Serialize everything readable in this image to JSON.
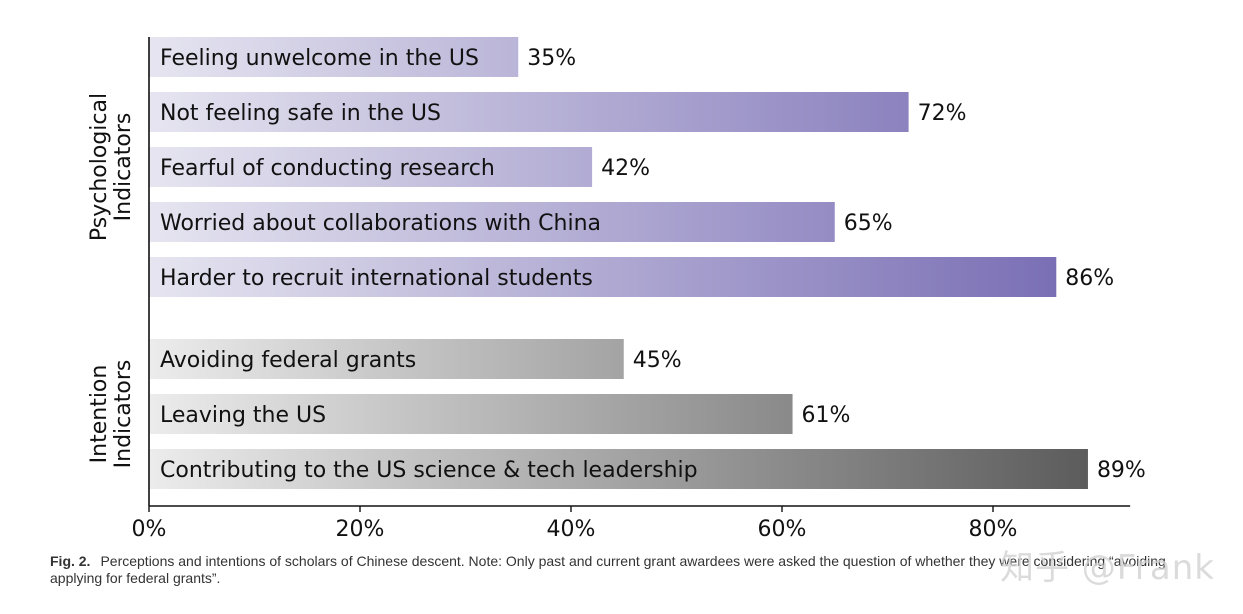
{
  "chart_data": {
    "type": "bar",
    "orientation": "horizontal",
    "groups": [
      {
        "name": "Psychological Indicators",
        "name_lines": [
          "Psychological",
          "Indicators"
        ],
        "color_start": "#e6e5f0",
        "color_end": "#7a6fb5",
        "bars": [
          {
            "label": "Feeling unwelcome in the US",
            "value": 35,
            "value_label": "35%"
          },
          {
            "label": "Not feeling safe in the US",
            "value": 72,
            "value_label": "72%"
          },
          {
            "label": "Fearful of conducting research",
            "value": 42,
            "value_label": "42%"
          },
          {
            "label": "Worried about collaborations with China",
            "value": 65,
            "value_label": "65%"
          },
          {
            "label": "Harder to recruit international students",
            "value": 86,
            "value_label": "86%"
          }
        ]
      },
      {
        "name": "Intention Indicators",
        "name_lines": [
          "Intention",
          "Indicators"
        ],
        "color_start": "#ececec",
        "color_end": "#5c5c5c",
        "bars": [
          {
            "label": "Avoiding federal grants",
            "value": 45,
            "value_label": "45%"
          },
          {
            "label": "Leaving the US",
            "value": 61,
            "value_label": "61%"
          },
          {
            "label": "Contributing to the US science & tech leadership",
            "value": 89,
            "value_label": "89%"
          }
        ]
      }
    ],
    "xlim": [
      0,
      93
    ],
    "xticks": [
      0,
      20,
      40,
      60,
      80
    ],
    "xtick_labels": [
      "0%",
      "20%",
      "40%",
      "60%",
      "80%"
    ],
    "grid": false,
    "legend": "none"
  },
  "caption": {
    "fig_label": "Fig. 2.",
    "text": "Perceptions and intentions of scholars of Chinese descent. Note: Only past and current grant awardees were asked the question of whether they were considering “avoiding applying for federal grants”."
  },
  "watermark": "知乎 @Frank"
}
